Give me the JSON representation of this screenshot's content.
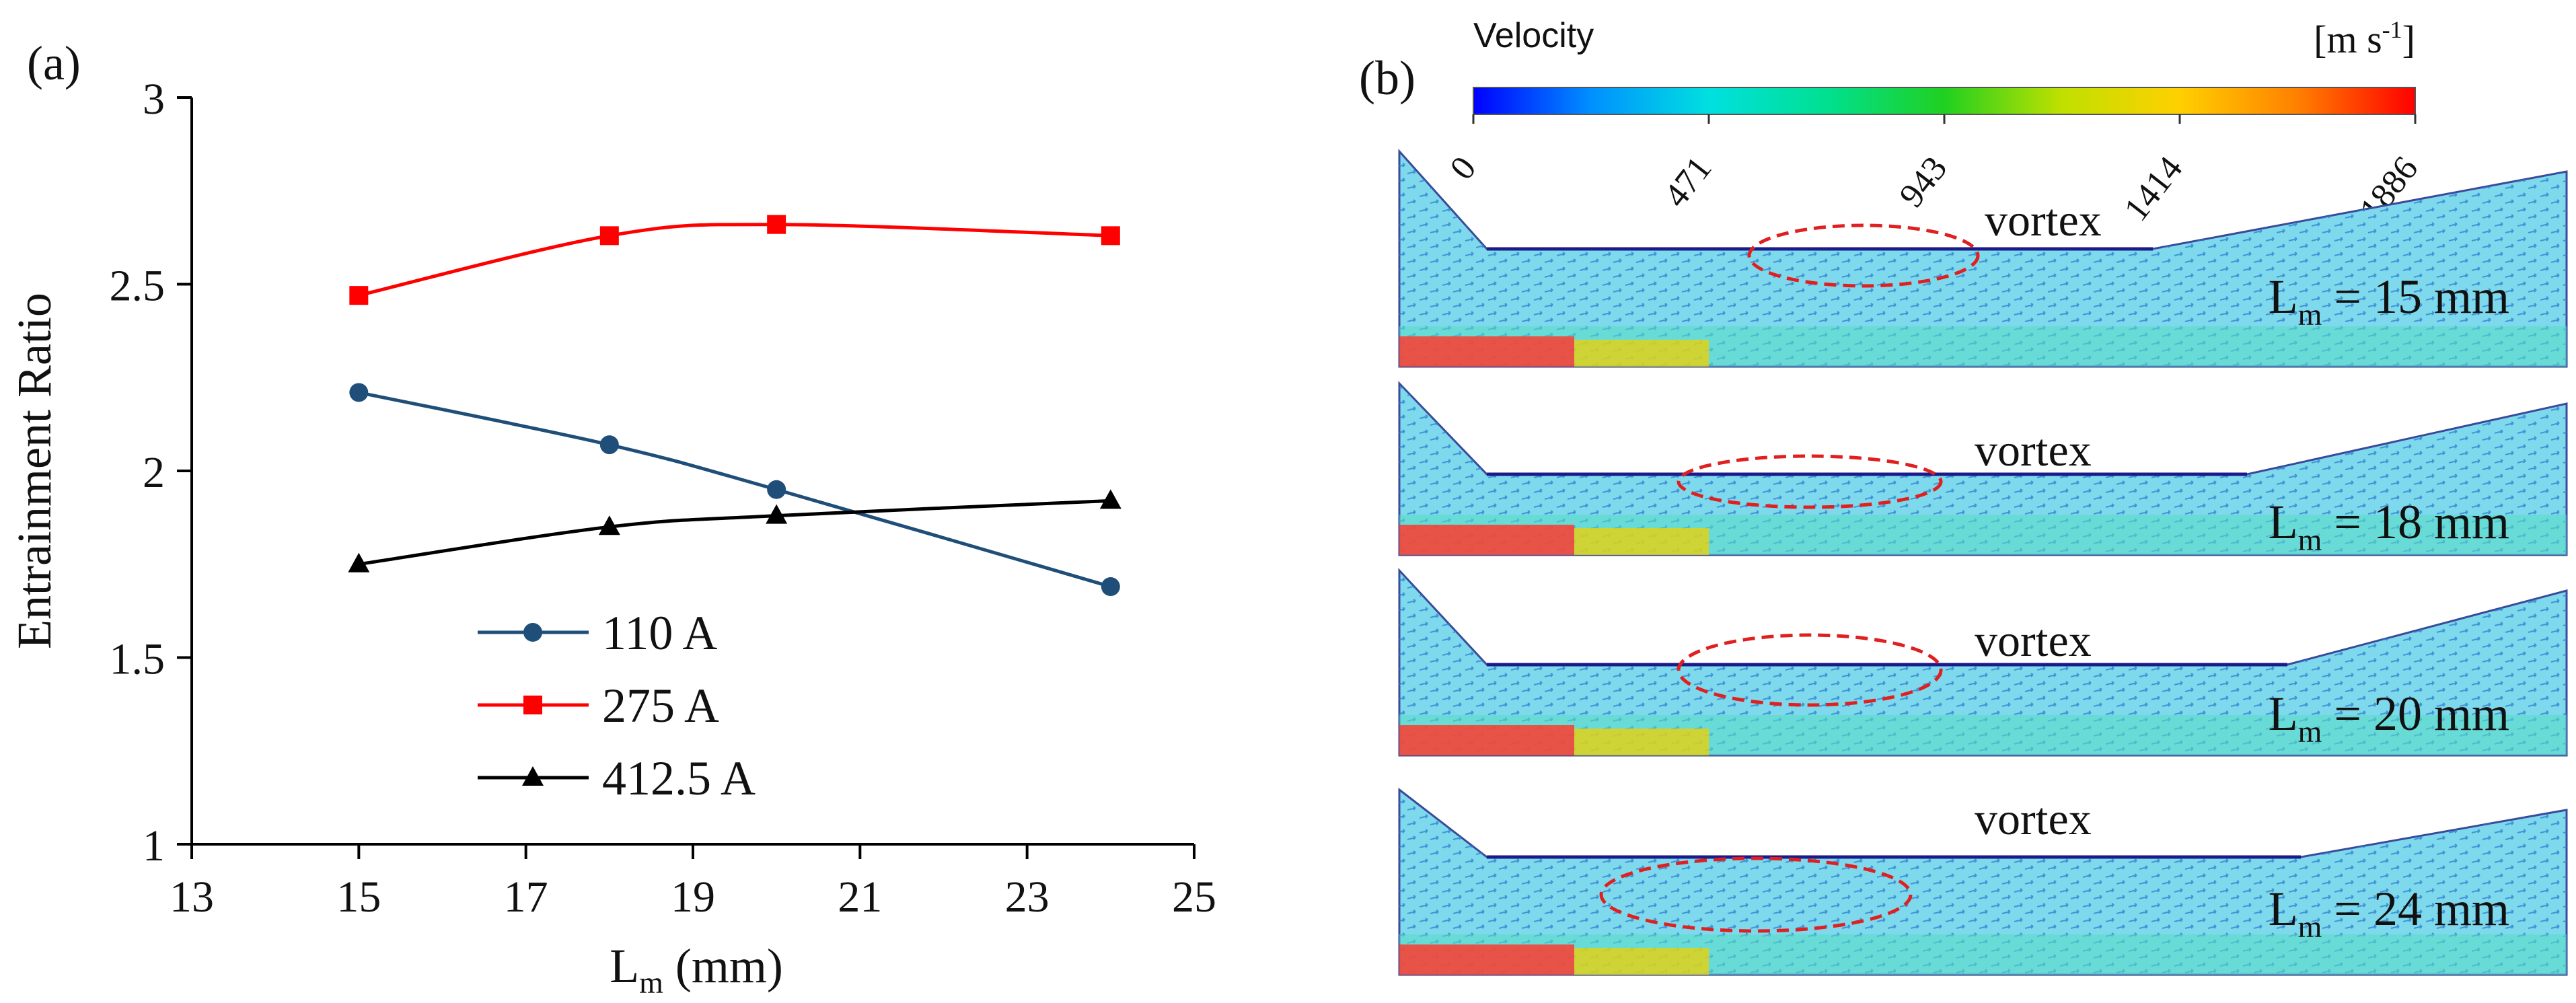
{
  "panel_a": {
    "label": "(a)",
    "legend": [
      "110 A",
      "275 A",
      "412.5 A"
    ]
  },
  "panel_b": {
    "label": "(b)",
    "colorbar": {
      "title": "Velocity",
      "unit_base": "[m s",
      "unit_sup": "-1",
      "unit_close": "]",
      "ticks": [
        "0",
        "471",
        "943",
        "1414",
        "1886"
      ],
      "colors": [
        "#0000ff",
        "#0090ff",
        "#00e0e0",
        "#00e090",
        "#20d020",
        "#c0e000",
        "#ffd000",
        "#ff8000",
        "#ff0000"
      ]
    },
    "cases": [
      {
        "annotation": "vortex",
        "lm_prefix": "L",
        "lm_sub": "m",
        "lm_value": " = 15 mm"
      },
      {
        "annotation": "vortex",
        "lm_prefix": "L",
        "lm_sub": "m",
        "lm_value": " = 18 mm"
      },
      {
        "annotation": "vortex",
        "lm_prefix": "L",
        "lm_sub": "m",
        "lm_value": " = 20 mm"
      },
      {
        "annotation": "vortex",
        "lm_prefix": "L",
        "lm_sub": "m",
        "lm_value": " = 24 mm"
      }
    ]
  },
  "chart_data": {
    "type": "line",
    "title": "",
    "xlabel_main": "L",
    "xlabel_sub": "m",
    "xlabel_rest": " (mm)",
    "ylabel": "Entrainment Ratio",
    "xlim": [
      13,
      25
    ],
    "ylim": [
      1,
      3
    ],
    "xticks": [
      13,
      15,
      17,
      19,
      21,
      23,
      25
    ],
    "yticks": [
      1,
      1.5,
      2,
      2.5,
      3
    ],
    "x": [
      15,
      18,
      20,
      24
    ],
    "series": [
      {
        "name": "110 A",
        "color": "#1f4e79",
        "marker": "circle",
        "values": [
          2.21,
          2.07,
          1.95,
          1.69
        ]
      },
      {
        "name": "275 A",
        "color": "#ff0000",
        "marker": "square",
        "values": [
          2.47,
          2.63,
          2.66,
          2.63
        ]
      },
      {
        "name": "412.5 A",
        "color": "#000000",
        "marker": "triangle",
        "values": [
          1.75,
          1.85,
          1.88,
          1.92
        ]
      }
    ],
    "grid": false,
    "legend_position": "bottom-left"
  }
}
